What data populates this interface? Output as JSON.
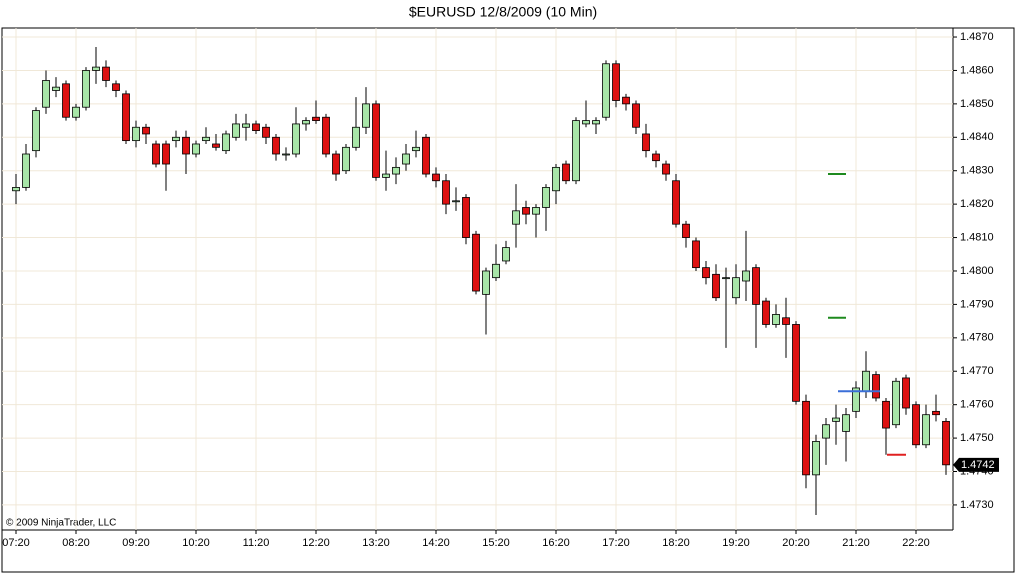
{
  "chart_data": {
    "type": "candlestick",
    "title": "$EURUSD  12/8/2009 (10 Min)",
    "annotation": "© 2009 NinjaTrader, LLC",
    "last_price": 1.4742,
    "up_color": "#a8e6a8",
    "down_color": "#dd1111",
    "grid": true,
    "categories": [
      "07:20",
      null,
      null,
      null,
      null,
      null,
      "08:20",
      null,
      null,
      null,
      null,
      null,
      "09:20",
      null,
      null,
      null,
      null,
      null,
      "10:20",
      null,
      null,
      null,
      null,
      null,
      "11:20",
      null,
      null,
      null,
      null,
      null,
      "12:20",
      null,
      null,
      null,
      null,
      null,
      "13:20",
      null,
      null,
      null,
      null,
      null,
      "14:20",
      null,
      null,
      null,
      null,
      null,
      "15:20",
      null,
      null,
      null,
      null,
      null,
      "16:20",
      null,
      null,
      null,
      null,
      null,
      "17:20",
      null,
      null,
      null,
      null,
      null,
      "18:20",
      null,
      null,
      null,
      null,
      null,
      "19:20",
      null,
      null,
      null,
      null,
      null,
      "20:20",
      null,
      null,
      null,
      null,
      null,
      "21:20",
      null,
      null,
      null,
      null,
      null,
      "22:20",
      null,
      null,
      null
    ],
    "open": [
      1.4824,
      1.4825,
      1.4836,
      1.4849,
      1.4854,
      1.4856,
      1.4846,
      1.4849,
      1.486,
      1.4861,
      1.4856,
      1.4853,
      1.4839,
      1.4843,
      1.4838,
      1.4838,
      1.4839,
      1.484,
      1.4835,
      1.4839,
      1.4838,
      1.4836,
      1.484,
      1.4843,
      1.4844,
      1.4843,
      1.484,
      1.4835,
      1.4835,
      1.4844,
      1.4846,
      1.4846,
      1.4835,
      1.483,
      1.4837,
      1.4843,
      1.485,
      1.4828,
      1.4829,
      1.4832,
      1.4836,
      1.484,
      1.4829,
      1.4827,
      1.4821,
      1.4822,
      1.4811,
      1.4793,
      1.4798,
      1.4803,
      1.4814,
      1.4819,
      1.4817,
      1.4819,
      1.4824,
      1.4832,
      1.4827,
      1.4844,
      1.4844,
      1.4846,
      1.4862,
      1.4852,
      1.485,
      1.4841,
      1.4835,
      1.4832,
      1.4827,
      1.4814,
      1.4809,
      1.4801,
      1.4799,
      1.4798,
      1.4792,
      1.4797,
      1.4801,
      1.4791,
      1.4784,
      1.4786,
      1.4784,
      1.4761,
      1.4739,
      1.475,
      1.4755,
      1.4752,
      1.4758,
      1.4764,
      1.4769,
      1.4761,
      1.4754,
      1.4768,
      1.476,
      1.4748,
      1.4758,
      1.4755
    ],
    "high": [
      1.4829,
      1.4838,
      1.4849,
      1.486,
      1.4858,
      1.4857,
      1.485,
      1.4861,
      1.4867,
      1.4863,
      1.4857,
      1.4854,
      1.4845,
      1.4844,
      1.4839,
      1.4839,
      1.4842,
      1.4842,
      1.4839,
      1.4843,
      1.4841,
      1.4842,
      1.4847,
      1.4847,
      1.4845,
      1.4844,
      1.4841,
      1.4837,
      1.4849,
      1.4846,
      1.4851,
      1.4847,
      1.4836,
      1.4838,
      1.4852,
      1.4855,
      1.4851,
      1.4836,
      1.4834,
      1.4838,
      1.4842,
      1.4841,
      1.4831,
      1.4829,
      1.4825,
      1.4823,
      1.4812,
      1.4801,
      1.4808,
      1.4809,
      1.4826,
      1.4821,
      1.482,
      1.4826,
      1.4832,
      1.4833,
      1.4846,
      1.4851,
      1.4846,
      1.4863,
      1.4863,
      1.4853,
      1.4851,
      1.4844,
      1.4836,
      1.4833,
      1.4829,
      1.4815,
      1.481,
      1.4803,
      1.4802,
      1.4801,
      1.4802,
      1.4812,
      1.4802,
      1.4792,
      1.479,
      1.4792,
      1.4785,
      1.4763,
      1.4751,
      1.4756,
      1.476,
      1.4759,
      1.4767,
      1.4776,
      1.477,
      1.4762,
      1.4768,
      1.4769,
      1.4761,
      1.476,
      1.4763,
      1.4756
    ],
    "low": [
      1.482,
      1.4824,
      1.4834,
      1.4847,
      1.4852,
      1.4845,
      1.4845,
      1.4848,
      1.4856,
      1.4855,
      1.4852,
      1.4838,
      1.4837,
      1.4838,
      1.4831,
      1.4824,
      1.4837,
      1.4829,
      1.4834,
      1.4838,
      1.4836,
      1.4835,
      1.4839,
      1.4839,
      1.4841,
      1.4838,
      1.4833,
      1.4833,
      1.4834,
      1.4842,
      1.4844,
      1.4834,
      1.4827,
      1.4829,
      1.4836,
      1.4841,
      1.4827,
      1.4824,
      1.4826,
      1.483,
      1.4834,
      1.4828,
      1.4825,
      1.4817,
      1.4818,
      1.4808,
      1.4793,
      1.4781,
      1.4797,
      1.4802,
      1.4807,
      1.4814,
      1.481,
      1.4812,
      1.482,
      1.4826,
      1.4826,
      1.4843,
      1.4841,
      1.4845,
      1.4849,
      1.4848,
      1.4841,
      1.4834,
      1.4831,
      1.4827,
      1.4813,
      1.4807,
      1.48,
      1.4796,
      1.4791,
      1.4777,
      1.479,
      1.4791,
      1.4777,
      1.4783,
      1.4783,
      1.4774,
      1.476,
      1.4735,
      1.4727,
      1.4742,
      1.4748,
      1.4743,
      1.4756,
      1.4762,
      1.4761,
      1.4745,
      1.4753,
      1.4757,
      1.4747,
      1.4747,
      1.4755,
      1.4739
    ],
    "close": [
      1.4825,
      1.4835,
      1.4848,
      1.4857,
      1.4855,
      1.4846,
      1.4849,
      1.486,
      1.4861,
      1.4857,
      1.4854,
      1.4839,
      1.4843,
      1.4841,
      1.4832,
      1.4832,
      1.484,
      1.4835,
      1.4838,
      1.484,
      1.4837,
      1.4841,
      1.4844,
      1.4844,
      1.4842,
      1.484,
      1.4835,
      1.4835,
      1.4844,
      1.4845,
      1.4845,
      1.4835,
      1.4829,
      1.4837,
      1.4843,
      1.485,
      1.4828,
      1.4829,
      1.4831,
      1.4835,
      1.4837,
      1.4829,
      1.4827,
      1.482,
      1.4821,
      1.481,
      1.4794,
      1.48,
      1.4802,
      1.4807,
      1.4818,
      1.4817,
      1.4819,
      1.4825,
      1.4831,
      1.4827,
      1.4845,
      1.4845,
      1.4845,
      1.4862,
      1.4851,
      1.485,
      1.4843,
      1.4836,
      1.4833,
      1.4829,
      1.4814,
      1.481,
      1.4801,
      1.4798,
      1.4792,
      1.4798,
      1.4798,
      1.48,
      1.479,
      1.4784,
      1.4787,
      1.4784,
      1.4761,
      1.4739,
      1.4749,
      1.4754,
      1.4756,
      1.4757,
      1.4765,
      1.477,
      1.4762,
      1.4753,
      1.4767,
      1.4759,
      1.4748,
      1.4757,
      1.4757,
      1.4742
    ],
    "lines": [
      {
        "value": 1.4829,
        "color": "#1e8a1e"
      },
      {
        "value": 1.4786,
        "color": "#1e8a1e"
      },
      {
        "value": 1.4764,
        "color": "#3a6fd8"
      },
      {
        "value": 1.4745,
        "color": "#e02020"
      }
    ],
    "ylim": [
      1.47225,
      1.48727
    ],
    "yticks": [
      {
        "value": 1.473,
        "label": "1.4730"
      },
      {
        "value": 1.474,
        "label": "1.4740"
      },
      {
        "value": 1.475,
        "label": "1.4750"
      },
      {
        "value": 1.476,
        "label": "1.4760"
      },
      {
        "value": 1.477,
        "label": "1.4770"
      },
      {
        "value": 1.478,
        "label": "1.4780"
      },
      {
        "value": 1.479,
        "label": "1.4790"
      },
      {
        "value": 1.48,
        "label": "1.4800"
      },
      {
        "value": 1.481,
        "label": "1.4810"
      },
      {
        "value": 1.482,
        "label": "1.4820"
      },
      {
        "value": 1.483,
        "label": "1.4830"
      },
      {
        "value": 1.484,
        "label": "1.4840"
      },
      {
        "value": 1.485,
        "label": "1.4850"
      },
      {
        "value": 1.486,
        "label": "1.4860"
      },
      {
        "value": 1.487,
        "label": "1.4870"
      }
    ]
  }
}
